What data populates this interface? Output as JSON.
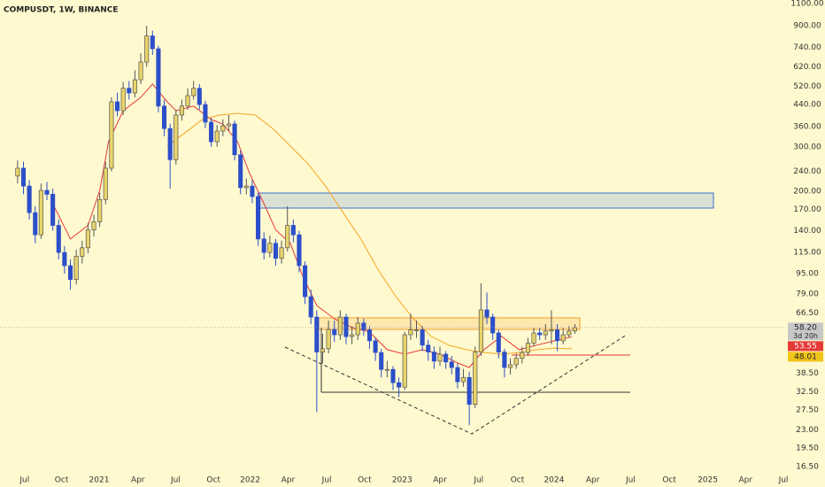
{
  "chart_data": {
    "type": "candlestick",
    "title": "COMPUSDT, 1W, BINANCE",
    "log_scale": true,
    "grid": false,
    "up_color": "#e8d46a",
    "down_color": "#2c4fc9",
    "x": [
      0,
      2,
      4,
      6,
      8,
      10,
      12,
      14,
      16,
      18,
      20,
      22,
      24,
      26,
      28,
      30,
      32,
      34,
      36,
      38,
      40,
      42,
      44,
      46,
      48,
      50,
      52,
      54,
      56,
      58,
      60,
      62,
      64,
      66,
      68,
      70,
      72,
      74,
      76,
      78,
      80,
      82,
      84,
      86,
      88,
      90,
      92,
      94,
      96,
      98,
      100,
      102,
      104,
      106,
      108,
      110,
      112,
      114,
      116,
      118,
      120,
      122,
      124,
      126,
      128,
      130,
      132,
      134,
      136,
      138,
      140,
      142,
      144,
      146,
      148,
      150,
      152,
      154,
      156,
      158,
      160,
      162,
      164,
      166,
      168,
      170,
      172,
      174,
      176,
      178,
      180,
      182,
      184,
      186,
      188,
      190
    ],
    "open": [
      230,
      247,
      210,
      165,
      135,
      202,
      195,
      147,
      115,
      102,
      90,
      111,
      120,
      141,
      152,
      186,
      247,
      451,
      416,
      510,
      489,
      551,
      647,
      820,
      730,
      434,
      354,
      267,
      400,
      434,
      477,
      510,
      440,
      375,
      314,
      346,
      363,
      369,
      279,
      207,
      210,
      191,
      130,
      115,
      125,
      109,
      120,
      147,
      135,
      102,
      77,
      64,
      46.6,
      48,
      57.2,
      54.5,
      64,
      53.6,
      54.5,
      60.6,
      57,
      51.6,
      46.4,
      39.8,
      39.8,
      35.3,
      33.9,
      54.5,
      57,
      57,
      49.6,
      46.6,
      42.9,
      45.7,
      42.6,
      40.5,
      35.6,
      37,
      29,
      46.6,
      68.3,
      64,
      55.4,
      46.6,
      40.5,
      41.5,
      44,
      46.4,
      50.5,
      55.4,
      54.5,
      56.4,
      57,
      51.6,
      54.5,
      56.4
    ],
    "high": [
      265,
      262,
      222,
      175,
      215,
      218,
      205,
      155,
      122,
      108,
      118,
      128,
      150,
      162,
      198,
      262,
      470,
      490,
      540,
      545,
      600,
      700,
      900,
      860,
      750,
      460,
      370,
      420,
      460,
      510,
      545,
      530,
      455,
      390,
      365,
      385,
      400,
      380,
      290,
      225,
      222,
      198,
      138,
      134,
      130,
      128,
      175,
      155,
      140,
      106,
      82,
      68,
      55,
      62,
      62,
      68,
      66,
      59,
      64,
      63,
      59,
      53,
      48,
      43,
      41,
      37,
      56,
      66,
      62,
      59,
      52,
      49,
      49,
      47,
      45,
      42,
      40,
      39,
      49,
      87,
      80,
      66,
      57,
      48,
      44,
      46,
      49,
      53,
      58,
      58,
      60,
      68,
      60,
      58,
      59,
      60
    ],
    "low": [
      215,
      195,
      155,
      125,
      130,
      185,
      140,
      108,
      95,
      82,
      86,
      104,
      114,
      133,
      145,
      178,
      240,
      395,
      400,
      460,
      470,
      530,
      620,
      690,
      410,
      330,
      205,
      255,
      380,
      420,
      460,
      420,
      355,
      300,
      300,
      330,
      345,
      265,
      195,
      195,
      180,
      122,
      108,
      110,
      102,
      104,
      116,
      126,
      96,
      72,
      60,
      27,
      42,
      46,
      51,
      52,
      50,
      50,
      52,
      54,
      48,
      43,
      37,
      37,
      33,
      31,
      33,
      52,
      53,
      47,
      43,
      40,
      41,
      40,
      38,
      33.5,
      34,
      24,
      28,
      45,
      60,
      52,
      44,
      37,
      38,
      40,
      42,
      45,
      49,
      52,
      52,
      50,
      47,
      50,
      53,
      55
    ],
    "close": [
      247,
      210,
      165,
      135,
      202,
      195,
      147,
      115,
      102,
      90,
      111,
      120,
      141,
      152,
      186,
      247,
      451,
      416,
      510,
      489,
      551,
      647,
      820,
      730,
      434,
      354,
      267,
      400,
      434,
      477,
      510,
      440,
      375,
      314,
      346,
      363,
      369,
      279,
      207,
      210,
      191,
      130,
      115,
      125,
      109,
      120,
      147,
      135,
      102,
      77,
      64,
      46.6,
      48,
      57.2,
      54.5,
      64,
      53.6,
      54.5,
      60.6,
      57,
      51.6,
      46.4,
      39.8,
      39.8,
      35.3,
      33.9,
      54.5,
      57,
      57,
      49.6,
      46.6,
      42.9,
      45.7,
      42.6,
      40.5,
      35.6,
      37,
      29,
      46.6,
      68.3,
      64,
      55.4,
      46.6,
      40.5,
      41.5,
      44,
      46.4,
      50.5,
      55.4,
      54.5,
      56.4,
      57,
      51.6,
      54.5,
      56.4,
      58.2
    ],
    "last_price": {
      "value": 58.2,
      "label": "58.20"
    },
    "countdown": "3d 20h",
    "series": [
      {
        "color": "#e53935",
        "x": [
          12,
          18,
          24,
          28,
          31,
          36,
          42,
          46,
          51,
          54,
          60,
          66,
          70,
          75,
          79,
          84,
          88,
          93,
          97,
          102,
          108,
          114,
          120,
          126,
          132,
          138,
          144,
          150,
          154,
          159,
          165,
          171,
          177,
          183,
          189
        ],
        "values": [
          179,
          130,
          147,
          202,
          314,
          416,
          470,
          530,
          451,
          416,
          434,
          384,
          369,
          314,
          237,
          179,
          141,
          125,
          94,
          71,
          63,
          58.2,
          55.9,
          47.6,
          45.7,
          47.6,
          45.7,
          42.2,
          40.5,
          47.6,
          53.7,
          47.6,
          49.6,
          51.6,
          53.55
        ]
      },
      {
        "color": "#f5a623",
        "x": [
          51,
          57,
          63,
          69,
          75,
          81,
          87,
          93,
          99,
          105,
          111,
          117,
          123,
          129,
          135,
          141,
          147,
          153,
          159,
          165,
          171,
          177,
          183,
          189
        ],
        "values": [
          302,
          340,
          384,
          400,
          406,
          400,
          354,
          302,
          257,
          210,
          165,
          130,
          98,
          77,
          63,
          53.7,
          49.6,
          47.6,
          46.4,
          45.7,
          46.4,
          47.6,
          48.3,
          48.01
        ]
      }
    ],
    "xlim": [
      -6,
      262
    ],
    "xticks": [
      {
        "value": 2.4,
        "label": "Jul"
      },
      {
        "value": 15,
        "label": "Oct"
      },
      {
        "value": 27.8,
        "label": "2021"
      },
      {
        "value": 41,
        "label": "Apr"
      },
      {
        "value": 53.9,
        "label": "Jul"
      },
      {
        "value": 66.8,
        "label": "Oct"
      },
      {
        "value": 79.3,
        "label": "2022"
      },
      {
        "value": 92.2,
        "label": "Apr"
      },
      {
        "value": 105.4,
        "label": "Jul"
      },
      {
        "value": 118.3,
        "label": "Oct"
      },
      {
        "value": 131.1,
        "label": "2023"
      },
      {
        "value": 144,
        "label": "Apr"
      },
      {
        "value": 157.2,
        "label": "Jul"
      },
      {
        "value": 170.4,
        "label": "Oct"
      },
      {
        "value": 182.9,
        "label": "2024"
      },
      {
        "value": 196.1,
        "label": "Apr"
      },
      {
        "value": 209,
        "label": "Jul"
      },
      {
        "value": 222.2,
        "label": "Oct"
      },
      {
        "value": 235.3,
        "label": "2025"
      },
      {
        "value": 248.2,
        "label": "Apr"
      },
      {
        "value": 261.1,
        "label": "Jul"
      }
    ],
    "ylim": [
      15.45,
      1136
    ],
    "yticks": [
      {
        "value": 1100,
        "label": "1100.00"
      },
      {
        "value": 900,
        "label": "900.00"
      },
      {
        "value": 740,
        "label": "740.00"
      },
      {
        "value": 620,
        "label": "620.00"
      },
      {
        "value": 520,
        "label": "520.00"
      },
      {
        "value": 440,
        "label": "440.00"
      },
      {
        "value": 360,
        "label": "360.00"
      },
      {
        "value": 300,
        "label": "300.00"
      },
      {
        "value": 240,
        "label": "240.00"
      },
      {
        "value": 200,
        "label": "200.00"
      },
      {
        "value": 170,
        "label": "170.00"
      },
      {
        "value": 140,
        "label": "140.00"
      },
      {
        "value": 115,
        "label": "115.00"
      },
      {
        "value": 95,
        "label": "95.00"
      },
      {
        "value": 79,
        "label": "79.00"
      },
      {
        "value": 66.5,
        "label": "66.50"
      },
      {
        "value": 38.5,
        "label": "38.50"
      },
      {
        "value": 32.5,
        "label": "32.50"
      },
      {
        "value": 27.5,
        "label": "27.50"
      },
      {
        "value": 23,
        "label": "23.00"
      },
      {
        "value": 19.5,
        "label": "19.50"
      },
      {
        "value": 16.5,
        "label": "16.50"
      }
    ]
  }
}
